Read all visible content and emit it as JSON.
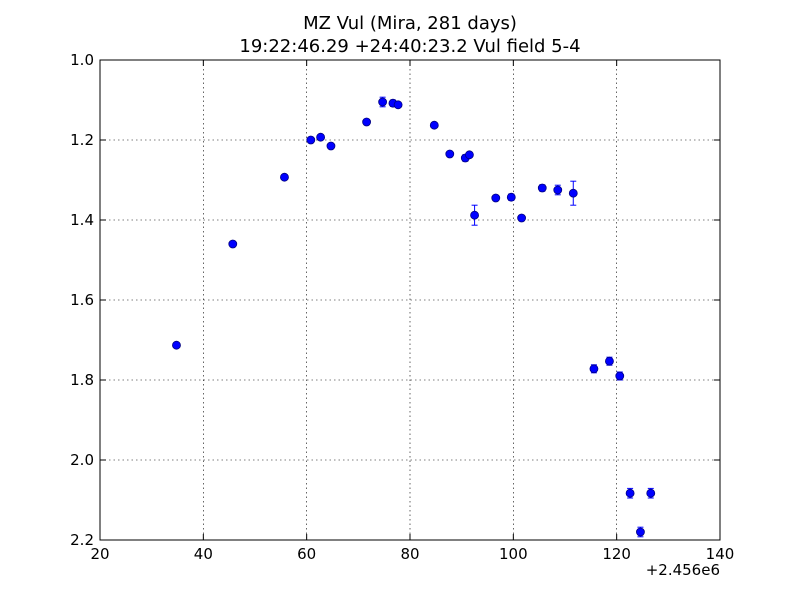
{
  "chart_data": {
    "type": "scatter",
    "title_lines": [
      "MZ Vul (Mira, 281 days)",
      "19:22:46.29 +24:40:23.2 Vul field 5-4"
    ],
    "xlabel": "",
    "ylabel": "",
    "x_offset_label": "+2.456e6",
    "xlim": [
      20,
      140
    ],
    "ylim": [
      2.2,
      1.0
    ],
    "y_inverted": true,
    "grid": true,
    "x_ticks": [
      20,
      40,
      60,
      80,
      100,
      120,
      140
    ],
    "x_tick_labels": [
      "20",
      "40",
      "60",
      "80",
      "100",
      "120",
      "140"
    ],
    "y_ticks": [
      1.0,
      1.2,
      1.4,
      1.6,
      1.8,
      2.0,
      2.2
    ],
    "y_tick_labels": [
      "1.0",
      "1.2",
      "1.4",
      "1.6",
      "1.8",
      "2.0",
      "2.2"
    ],
    "marker_color": "#0000ff",
    "points": [
      {
        "x": 34.8,
        "y": 1.713,
        "err": 0.005
      },
      {
        "x": 45.7,
        "y": 1.46,
        "err": 0.005
      },
      {
        "x": 55.7,
        "y": 1.293,
        "err": 0.005
      },
      {
        "x": 60.8,
        "y": 1.2,
        "err": 0.005
      },
      {
        "x": 62.7,
        "y": 1.193,
        "err": 0.005
      },
      {
        "x": 64.7,
        "y": 1.215,
        "err": 0.005
      },
      {
        "x": 71.6,
        "y": 1.155,
        "err": 0.005
      },
      {
        "x": 74.7,
        "y": 1.105,
        "err": 0.012
      },
      {
        "x": 76.7,
        "y": 1.108,
        "err": 0.008
      },
      {
        "x": 77.7,
        "y": 1.112,
        "err": 0.006
      },
      {
        "x": 84.7,
        "y": 1.163,
        "err": 0.006
      },
      {
        "x": 87.7,
        "y": 1.235,
        "err": 0.006
      },
      {
        "x": 90.7,
        "y": 1.245,
        "err": 0.008
      },
      {
        "x": 91.5,
        "y": 1.237,
        "err": 0.006
      },
      {
        "x": 92.5,
        "y": 1.388,
        "err": 0.025
      },
      {
        "x": 96.6,
        "y": 1.345,
        "err": 0.006
      },
      {
        "x": 99.6,
        "y": 1.343,
        "err": 0.008
      },
      {
        "x": 101.6,
        "y": 1.395,
        "err": 0.006
      },
      {
        "x": 105.6,
        "y": 1.32,
        "err": 0.008
      },
      {
        "x": 108.6,
        "y": 1.325,
        "err": 0.012
      },
      {
        "x": 111.6,
        "y": 1.333,
        "err": 0.03
      },
      {
        "x": 115.6,
        "y": 1.772,
        "err": 0.01
      },
      {
        "x": 118.6,
        "y": 1.753,
        "err": 0.01
      },
      {
        "x": 120.6,
        "y": 1.79,
        "err": 0.01
      },
      {
        "x": 122.6,
        "y": 2.083,
        "err": 0.012
      },
      {
        "x": 124.6,
        "y": 2.18,
        "err": 0.012
      },
      {
        "x": 126.6,
        "y": 2.083,
        "err": 0.012
      }
    ]
  }
}
